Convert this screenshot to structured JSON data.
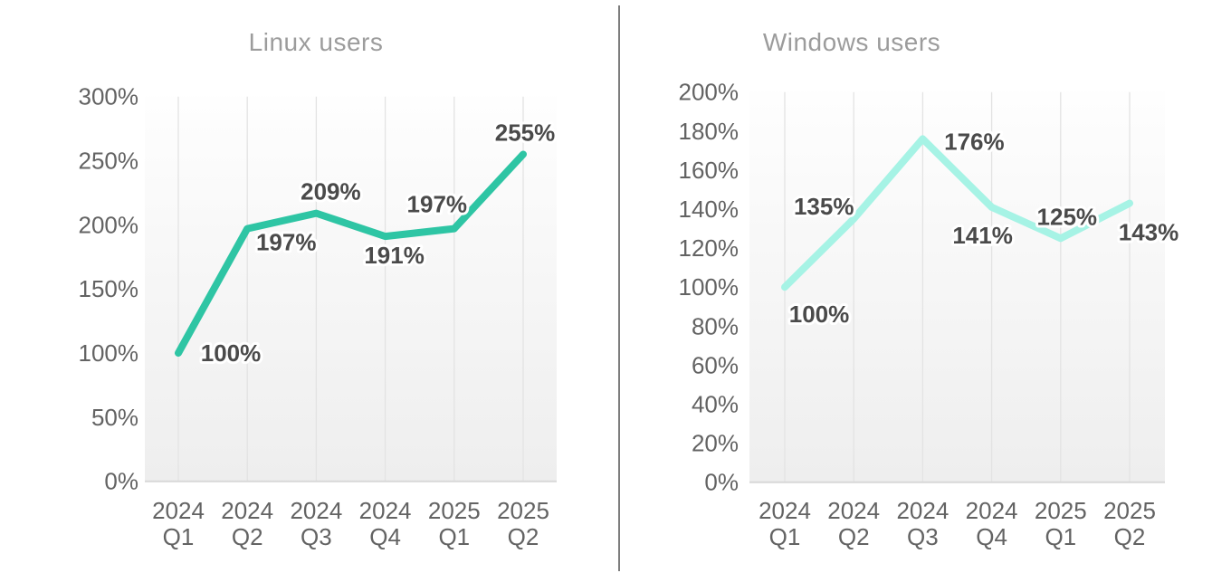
{
  "decor": {
    "divider_color": "#7d7d7d",
    "background_color": "#ffffff"
  },
  "chart_data": [
    {
      "type": "line",
      "title": "Linux users",
      "categories": [
        "2024 Q1",
        "2024 Q2",
        "2024 Q3",
        "2024 Q4",
        "2025 Q1",
        "2025 Q2"
      ],
      "values": [
        100,
        197,
        209,
        191,
        197,
        255
      ],
      "data_labels": [
        "100%",
        "197%",
        "209%",
        "191%",
        "197%",
        "255%"
      ],
      "yticks": [
        "300%",
        "250%",
        "200%",
        "150%",
        "100%",
        "50%",
        "0%"
      ],
      "ylim": [
        0,
        300
      ],
      "ytick_step": 50,
      "xlabel": "",
      "ylabel": "",
      "grid": "vertical-only",
      "legend": "none",
      "line_color": "#2EC5A4",
      "title_color": "#9c9c9c",
      "tick_label_color": "#636363",
      "data_label_color": "#4a4a4a",
      "grid_color": "#e3e3e3",
      "axis_line_color": "#d8d8d8",
      "plot_bg_top": "#fefefe",
      "plot_bg_bottom": "#eeeeee"
    },
    {
      "type": "line",
      "title": "Windows users",
      "categories": [
        "2024 Q1",
        "2024 Q2",
        "2024 Q3",
        "2024 Q4",
        "2025 Q1",
        "2025 Q2"
      ],
      "values": [
        100,
        135,
        176,
        141,
        125,
        143
      ],
      "data_labels": [
        "100%",
        "135%",
        "176%",
        "141%",
        "125%",
        "143%"
      ],
      "yticks": [
        "200%",
        "180%",
        "160%",
        "140%",
        "120%",
        "100%",
        "80%",
        "60%",
        "40%",
        "20%",
        "0%"
      ],
      "ylim": [
        0,
        200
      ],
      "ytick_step": 20,
      "xlabel": "",
      "ylabel": "",
      "grid": "vertical-only",
      "legend": "none",
      "line_color": "#A6F3E5",
      "title_color": "#9c9c9c",
      "tick_label_color": "#636363",
      "data_label_color": "#4a4a4a",
      "grid_color": "#e3e3e3",
      "axis_line_color": "#d8d8d8",
      "plot_bg_top": "#fefefe",
      "plot_bg_bottom": "#eeeeee"
    }
  ]
}
